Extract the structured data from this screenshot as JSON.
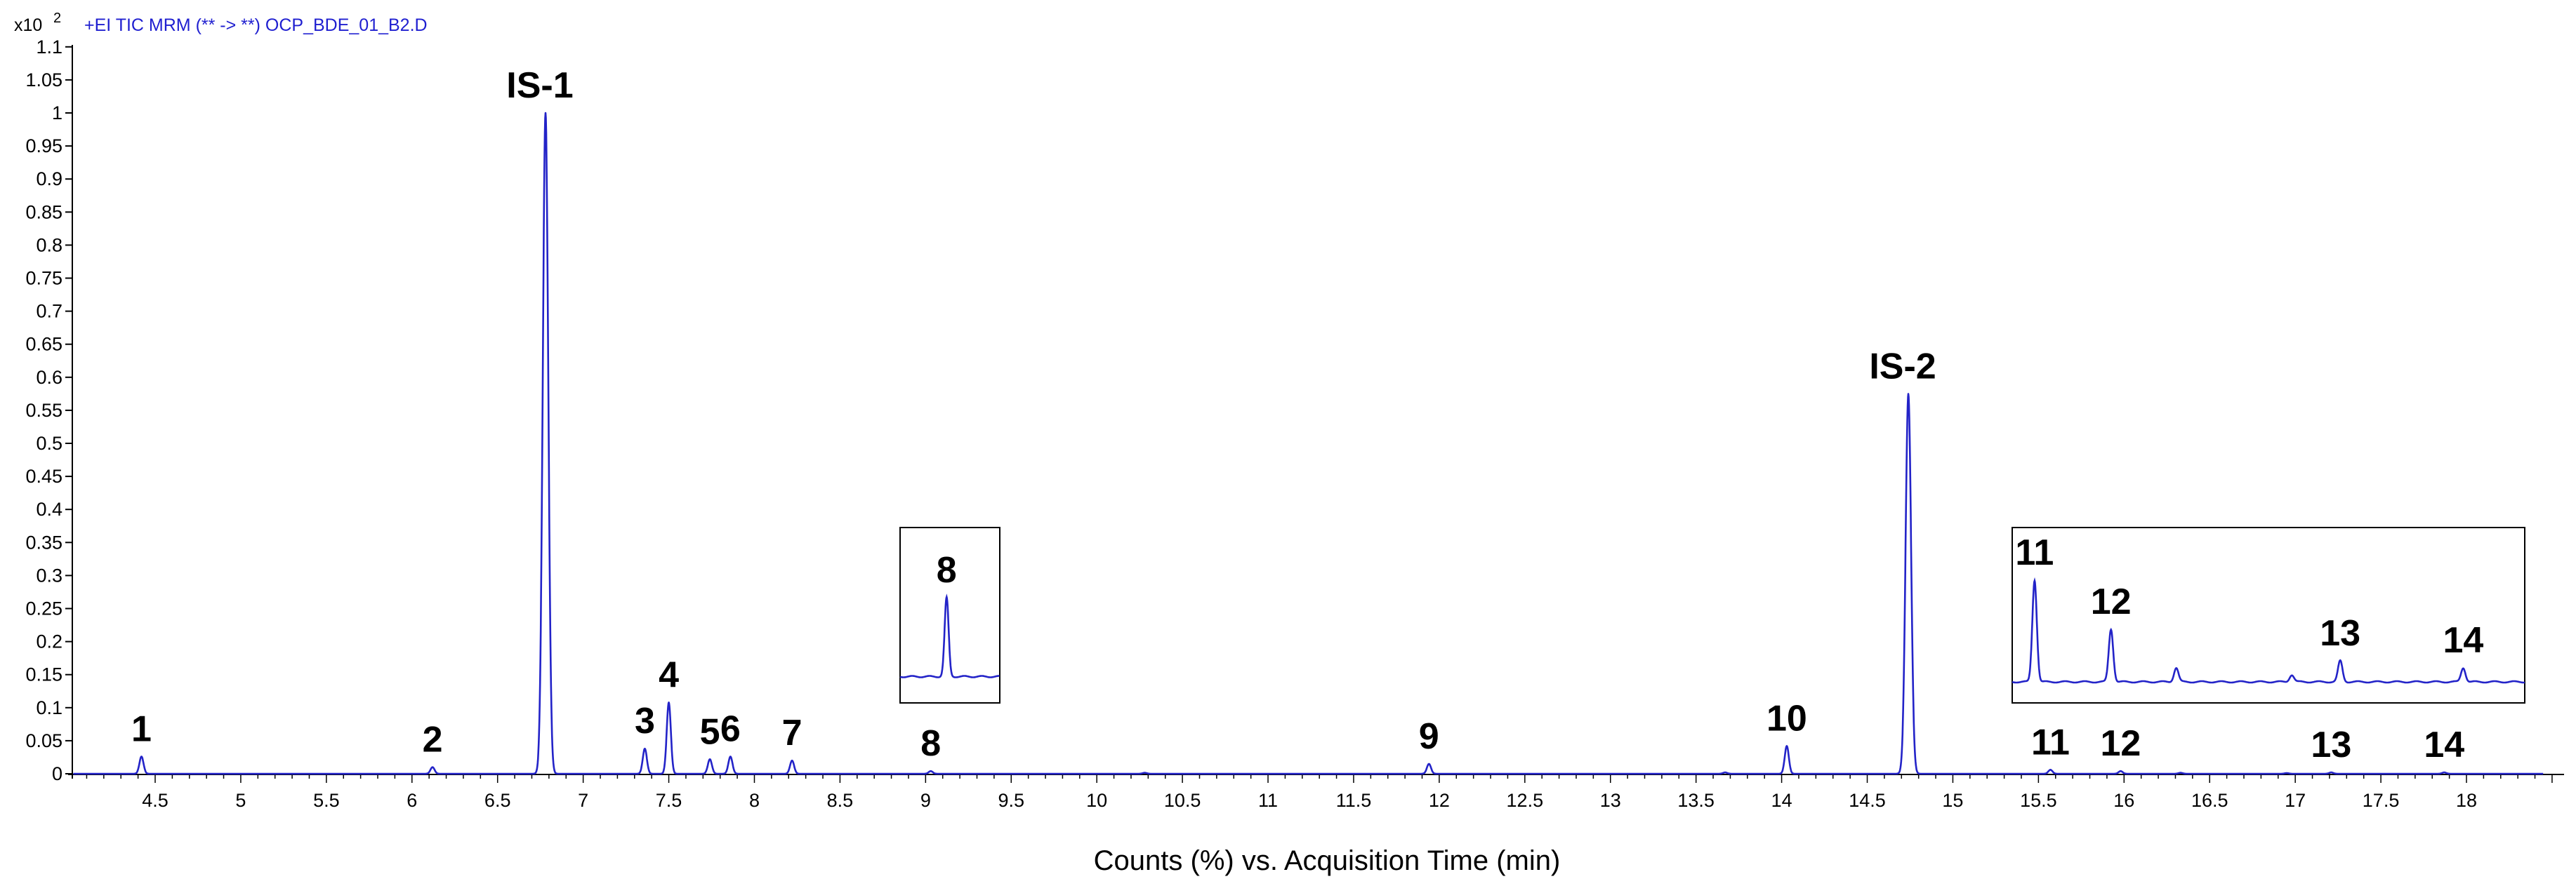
{
  "header": {
    "scale_prefix": "x10",
    "scale_exp": "2",
    "trace_title": "+EI TIC MRM (** -> **)  OCP_BDE_01_B2.D"
  },
  "colors": {
    "trace": "#2323c8",
    "axis": "#000000",
    "text_blue": "#1f1fd0"
  },
  "chart_data": {
    "type": "line",
    "title": "",
    "xlabel": "Counts (%) vs. Acquisition Time (min)",
    "ylabel": "",
    "y_scale_factor": 100,
    "xlim": [
      4.0,
      18.5
    ],
    "ylim": [
      -0.02,
      1.1
    ],
    "grid": false,
    "legend": "none",
    "x_ticks": [
      4.5,
      5,
      5.5,
      6,
      6.5,
      7,
      7.5,
      8,
      8.5,
      9,
      9.5,
      10,
      10.5,
      11,
      11.5,
      12,
      12.5,
      13,
      13.5,
      14,
      14.5,
      15,
      15.5,
      16,
      16.5,
      17,
      17.5,
      18
    ],
    "x_tick_labels": [
      "4.5",
      "5",
      "5.5",
      "6",
      "6.5",
      "7",
      "7.5",
      "8",
      "8.5",
      "9",
      "9.5",
      "10",
      "10.5",
      "11",
      "11.5",
      "12",
      "12.5",
      "13",
      "13.5",
      "14",
      "14.5",
      "15",
      "15.5",
      "16",
      "16.5",
      "17",
      "17.5",
      "18"
    ],
    "y_ticks": [
      0,
      0.05,
      0.1,
      0.15,
      0.2,
      0.25,
      0.3,
      0.35,
      0.4,
      0.45,
      0.5,
      0.55,
      0.6,
      0.65,
      0.7,
      0.75,
      0.8,
      0.85,
      0.9,
      0.95,
      1,
      1.05,
      1.1
    ],
    "y_tick_labels": [
      "0",
      "0.05",
      "0.1",
      "0.15",
      "0.2",
      "0.25",
      "0.3",
      "0.35",
      "0.4",
      "0.45",
      "0.5",
      "0.55",
      "0.6",
      "0.65",
      "0.7",
      "0.75",
      "0.8",
      "0.85",
      "0.9",
      "0.95",
      "1",
      "1.05",
      "1.1"
    ],
    "peaks": [
      {
        "label": "1",
        "rt": 4.42,
        "height": 0.026
      },
      {
        "label": "2",
        "rt": 6.12,
        "height": 0.01
      },
      {
        "label": "IS-1",
        "rt": 6.78,
        "height": 1.0
      },
      {
        "label": "3",
        "rt": 7.36,
        "height": 0.038
      },
      {
        "label": "4",
        "rt": 7.5,
        "height": 0.108
      },
      {
        "label": "5",
        "rt": 7.74,
        "height": 0.022
      },
      {
        "label": "6",
        "rt": 7.86,
        "height": 0.026
      },
      {
        "label": "7",
        "rt": 8.22,
        "height": 0.02
      },
      {
        "label": "8",
        "rt": 9.03,
        "height": 0.004
      },
      {
        "label": "9",
        "rt": 11.94,
        "height": 0.015
      },
      {
        "label": "10",
        "rt": 14.03,
        "height": 0.042
      },
      {
        "label": "IS-2",
        "rt": 14.74,
        "height": 0.575
      },
      {
        "label": "11",
        "rt": 15.57,
        "height": 0.006
      },
      {
        "label": "12",
        "rt": 15.98,
        "height": 0.004
      },
      {
        "label": "13",
        "rt": 17.21,
        "height": 0.002
      },
      {
        "label": "14",
        "rt": 17.87,
        "height": 0.002
      }
    ],
    "minor_peaks": [
      {
        "rt": 10.28,
        "height": 0.0015
      },
      {
        "rt": 13.67,
        "height": 0.002
      },
      {
        "rt": 16.33,
        "height": 0.0015
      },
      {
        "rt": 16.95,
        "height": 0.001
      }
    ],
    "insets": [
      {
        "name": "inset-peak-8",
        "x_range": [
          8.75,
          9.35
        ],
        "baseline_frac": 0.85,
        "peaks": [
          {
            "label": "8",
            "rt": 9.03,
            "frac": 0.45
          }
        ]
      },
      {
        "name": "inset-peaks-11-14",
        "x_range": [
          15.45,
          18.2
        ],
        "baseline_frac": 0.88,
        "peaks": [
          {
            "label": "11",
            "rt": 15.57,
            "frac": 0.58
          },
          {
            "label": "12",
            "rt": 15.98,
            "frac": 0.3
          },
          {
            "label": "",
            "rt": 16.33,
            "frac": 0.08
          },
          {
            "label": "",
            "rt": 16.95,
            "frac": 0.04
          },
          {
            "label": "13",
            "rt": 17.21,
            "frac": 0.12
          },
          {
            "label": "14",
            "rt": 17.87,
            "frac": 0.08
          }
        ]
      }
    ]
  }
}
